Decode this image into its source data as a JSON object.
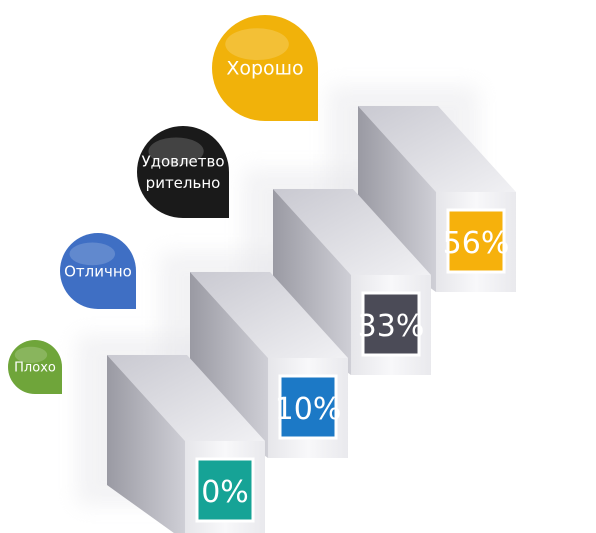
{
  "chart_data": {
    "type": "bar",
    "categories": [
      "Плохо",
      "Отлично",
      "Удовлетворительно",
      "Хорошо"
    ],
    "category_lines": [
      [
        "Плохо"
      ],
      [
        "Отлично"
      ],
      [
        "Удовлетво",
        "рительно"
      ],
      [
        "Хорошо"
      ]
    ],
    "values": [
      0,
      10,
      33,
      56
    ],
    "value_labels": [
      "0%",
      "10%",
      "33%",
      "56%"
    ],
    "colors": {
      "bubbles": [
        "#6fa53a",
        "#3f6fc4",
        "#1a1a1a",
        "#f1b20a"
      ],
      "labels": [
        "#16a396",
        "#1c79c6",
        "#4b4b57",
        "#f6b10c"
      ]
    }
  }
}
